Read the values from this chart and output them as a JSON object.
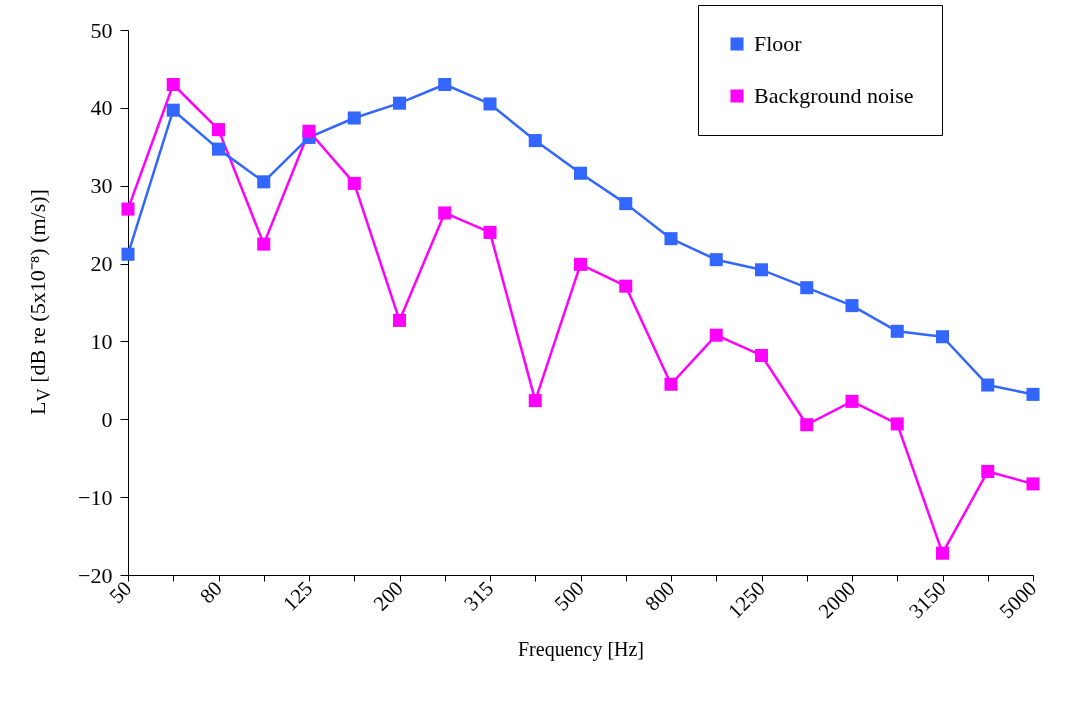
{
  "chart_data": {
    "type": "line",
    "xlabel": "Frequency [Hz]",
    "ylabel": "L$_{V}$ [dB re (5x10⁻⁸) (m/s)]",
    "categories": [
      "50",
      null,
      "80",
      null,
      "125",
      null,
      "200",
      null,
      "315",
      null,
      "500",
      null,
      "800",
      null,
      "1250",
      null,
      "2000",
      null,
      "3150",
      null,
      "5000"
    ],
    "series": [
      {
        "name": "Floor",
        "color": "#3366ff",
        "values": [
          21.2,
          39.7,
          34.7,
          30.5,
          36.2,
          38.7,
          40.6,
          43.0,
          40.5,
          35.8,
          31.6,
          27.7,
          23.2,
          20.5,
          19.2,
          16.9,
          14.6,
          11.3,
          10.6,
          4.4,
          3.2
        ]
      },
      {
        "name": "Background noise",
        "color": "#ff00ff",
        "values": [
          27.0,
          43.0,
          37.2,
          22.5,
          37.0,
          30.3,
          12.7,
          26.5,
          24.0,
          2.4,
          19.9,
          17.1,
          4.5,
          10.8,
          8.2,
          -0.7,
          2.3,
          -0.6,
          -17.2,
          -6.7,
          -8.3
        ]
      }
    ],
    "ylim": [
      -20,
      50
    ],
    "yticks": [
      -20,
      -10,
      0,
      10,
      20,
      30,
      40,
      50
    ],
    "grid": false,
    "legend": "top right",
    "marker": "square",
    "line_style": "solid"
  }
}
